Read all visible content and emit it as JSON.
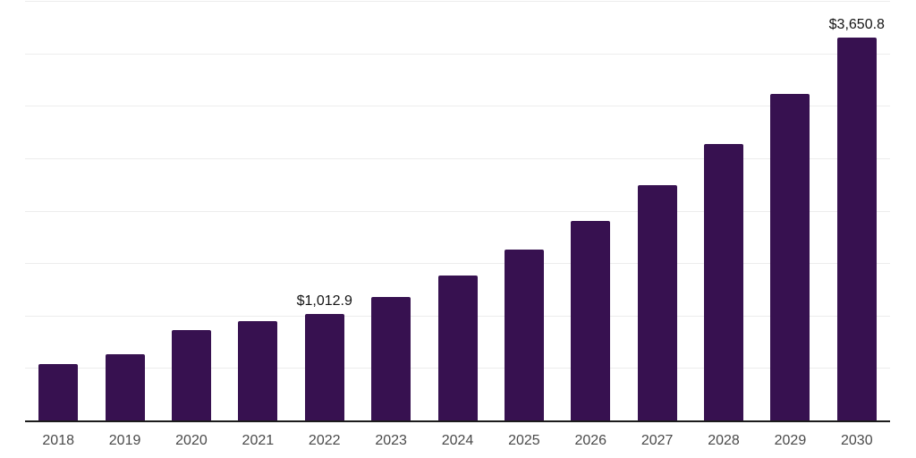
{
  "chart_data": {
    "type": "bar",
    "title": "",
    "xlabel": "",
    "ylabel": "",
    "categories": [
      "2018",
      "2019",
      "2020",
      "2021",
      "2022",
      "2023",
      "2024",
      "2025",
      "2026",
      "2027",
      "2028",
      "2029",
      "2030"
    ],
    "values": [
      537,
      631,
      861,
      947,
      1012.9,
      1177,
      1382,
      1629,
      1902,
      2243,
      2635,
      3113,
      3650.8
    ],
    "bar_labels": [
      "",
      "",
      "",
      "",
      "$1,012.9",
      "",
      "",
      "",
      "",
      "",
      "",
      "",
      "$3,650.8"
    ],
    "ylim": [
      0,
      4000
    ],
    "gridline_interval": 500,
    "grid": "horizontal",
    "legend": "none",
    "colors": {
      "bar": "#371150",
      "gridline": "#ededed",
      "axis_line": "#1c1c1c",
      "tick_label": "#4a4a4a",
      "value_label": "#141414",
      "background": "#ffffff"
    }
  }
}
